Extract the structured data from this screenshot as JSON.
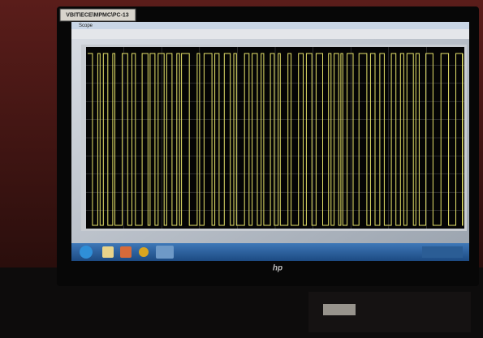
{
  "sticker": {
    "label": "VBIT\\ECE\\MPMC\\PC-13"
  },
  "window": {
    "title": "Scope"
  },
  "monitor": {
    "brand": "hp"
  }
}
